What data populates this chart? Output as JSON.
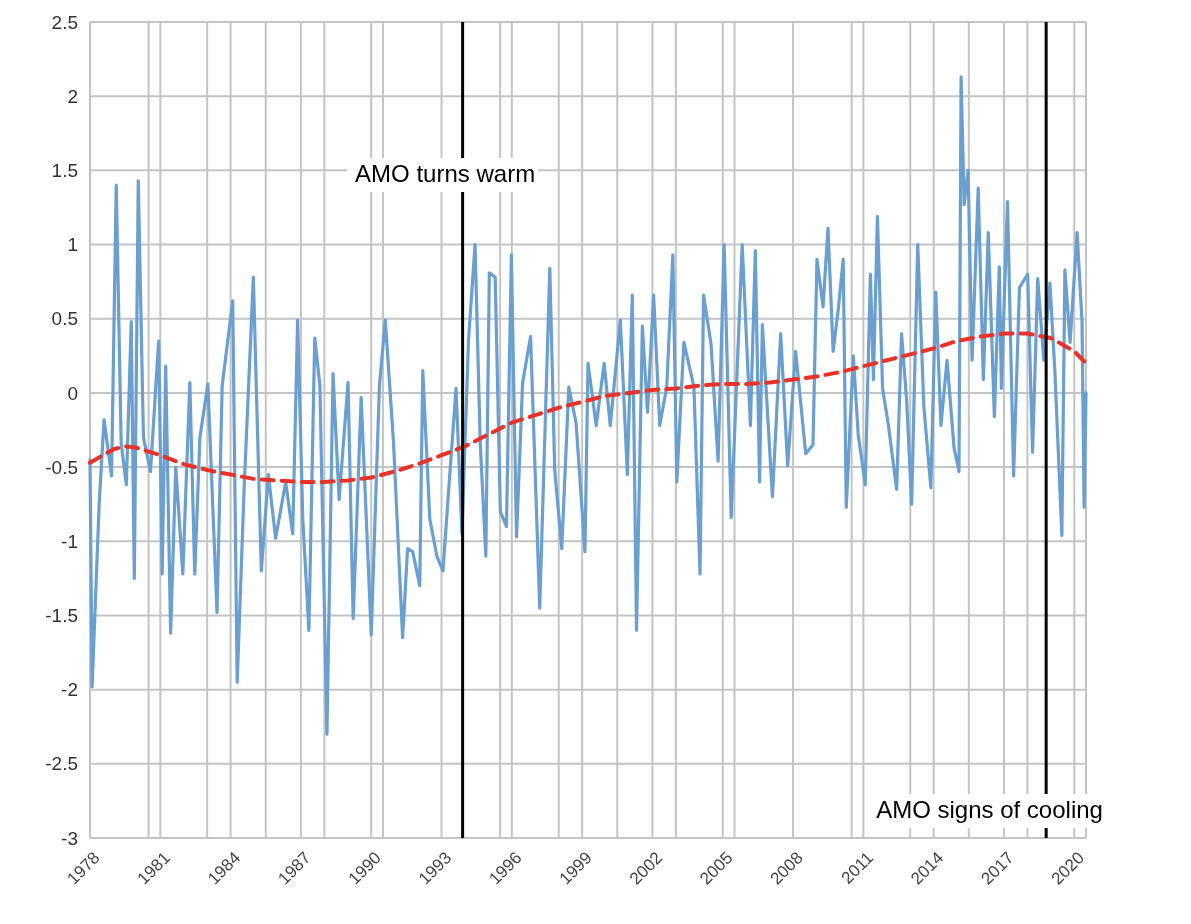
{
  "chart_data": {
    "type": "line",
    "xlim": [
      1978,
      2020.5
    ],
    "ylim": [
      -3,
      2.5
    ],
    "xticks": [
      1978,
      {
        "value": 1980.5,
        "label": null
      },
      1981,
      {
        "value": 1983,
        "label": null
      },
      1984,
      {
        "value": 1985.5,
        "label": null
      },
      1987,
      {
        "value": 1988,
        "label": null
      },
      1990,
      {
        "value": 1990.5,
        "label": null
      },
      1993,
      {
        "value": 1995.5,
        "label": null
      },
      1996,
      {
        "value": 1998,
        "label": null
      },
      1999,
      {
        "value": 2000.5,
        "label": null
      },
      2002,
      {
        "value": 2003,
        "label": null
      },
      2005,
      {
        "value": 2005.5,
        "label": null
      },
      2008,
      {
        "value": 2010.5,
        "label": null
      },
      2011,
      {
        "value": 2013,
        "label": null
      },
      2014,
      {
        "value": 2015.5,
        "label": null
      },
      2017,
      {
        "value": 2018,
        "label": null
      },
      2020,
      {
        "value": 2020.5,
        "label": null
      }
    ],
    "yticks": [
      -3,
      -2.5,
      -2,
      -1.5,
      -1,
      -0.5,
      0,
      0.5,
      1,
      1.5,
      2,
      2.5
    ],
    "grid": true,
    "marker": "none",
    "series": [
      {
        "color": "#6a9fd0",
        "line_style": "solid",
        "x": [
          1978.0,
          1978.09,
          1978.39,
          1978.6,
          1978.92,
          1979.12,
          1979.33,
          1979.55,
          1979.76,
          1979.89,
          1980.06,
          1980.28,
          1980.58,
          1980.93,
          1981.08,
          1981.23,
          1981.44,
          1981.66,
          1981.96,
          1982.26,
          1982.47,
          1982.69,
          1983.03,
          1983.42,
          1983.64,
          1984.09,
          1984.28,
          1984.58,
          1984.97,
          1985.31,
          1985.61,
          1985.92,
          1986.35,
          1986.65,
          1986.86,
          1987.08,
          1987.34,
          1987.59,
          1987.81,
          1988.11,
          1988.37,
          1988.63,
          1989.01,
          1989.23,
          1989.57,
          1990.0,
          1990.35,
          1990.6,
          1990.95,
          1991.34,
          1991.55,
          1991.77,
          1992.07,
          1992.2,
          1992.5,
          1992.8,
          1993.06,
          1993.32,
          1993.62,
          1993.87,
          1994.15,
          1994.43,
          1994.65,
          1994.89,
          1995.04,
          1995.29,
          1995.51,
          1995.77,
          1995.98,
          1996.2,
          1996.46,
          1996.8,
          1997.19,
          1997.62,
          1997.83,
          1998.13,
          1998.43,
          1998.74,
          1999.12,
          1999.25,
          1999.6,
          1999.94,
          2000.2,
          2000.63,
          2000.93,
          2001.14,
          2001.32,
          2001.57,
          2001.79,
          2002.05,
          2002.31,
          2002.61,
          2002.87,
          2003.04,
          2003.34,
          2003.77,
          2004.03,
          2004.18,
          2004.5,
          2004.8,
          2005.06,
          2005.36,
          2005.83,
          2006.18,
          2006.39,
          2006.57,
          2006.69,
          2007.12,
          2007.47,
          2007.77,
          2008.11,
          2008.54,
          2008.85,
          2009.02,
          2009.28,
          2009.49,
          2009.71,
          2009.92,
          2010.14,
          2010.27,
          2010.57,
          2010.78,
          2011.08,
          2011.3,
          2011.43,
          2011.6,
          2011.82,
          2012.07,
          2012.42,
          2012.63,
          2012.85,
          2013.06,
          2013.32,
          2013.58,
          2013.88,
          2014.09,
          2014.31,
          2014.57,
          2014.87,
          2015.08,
          2015.17,
          2015.3,
          2015.47,
          2015.64,
          2015.9,
          2016.12,
          2016.33,
          2016.59,
          2016.8,
          2016.89,
          2017.15,
          2017.41,
          2017.66,
          2018.01,
          2018.22,
          2018.44,
          2018.7,
          2018.96,
          2019.17,
          2019.47,
          2019.6,
          2019.82,
          2020.12,
          2020.33,
          2020.42,
          2020.5
        ],
        "values": [
          -0.45,
          -1.98,
          -0.75,
          -0.18,
          -0.56,
          1.4,
          -0.34,
          -0.62,
          0.48,
          -1.25,
          1.43,
          -0.3,
          -0.53,
          0.35,
          -1.22,
          0.18,
          -1.62,
          -0.5,
          -1.22,
          0.07,
          -1.22,
          -0.3,
          0.06,
          -1.48,
          0.05,
          0.62,
          -1.95,
          -0.63,
          0.78,
          -1.2,
          -0.55,
          -0.98,
          -0.6,
          -0.95,
          0.49,
          -0.85,
          -1.6,
          0.37,
          0.05,
          -2.3,
          0.13,
          -0.72,
          0.07,
          -1.52,
          -0.03,
          -1.63,
          0.05,
          0.49,
          -0.33,
          -1.65,
          -1.05,
          -1.07,
          -1.3,
          0.15,
          -0.85,
          -1.1,
          -1.2,
          -0.62,
          0.03,
          -0.95,
          0.35,
          1.0,
          -0.33,
          -1.1,
          0.81,
          0.78,
          -0.8,
          -0.9,
          0.93,
          -0.97,
          0.07,
          0.38,
          -1.45,
          0.84,
          -0.52,
          -1.05,
          0.04,
          -0.2,
          -1.07,
          0.2,
          -0.22,
          0.2,
          -0.22,
          0.49,
          -0.55,
          0.66,
          -1.6,
          0.45,
          -0.13,
          0.66,
          -0.22,
          0.04,
          0.93,
          -0.6,
          0.34,
          0.04,
          -1.22,
          0.66,
          0.33,
          -0.46,
          1.0,
          -0.84,
          1.0,
          -0.22,
          0.96,
          -0.6,
          0.46,
          -0.7,
          0.4,
          -0.49,
          0.28,
          -0.41,
          -0.35,
          0.9,
          0.58,
          1.11,
          0.28,
          0.55,
          0.9,
          -0.77,
          0.25,
          -0.28,
          -0.62,
          0.8,
          0.09,
          1.19,
          0.03,
          -0.22,
          -0.65,
          0.4,
          -0.06,
          -0.75,
          1.0,
          -0.09,
          -0.64,
          0.68,
          -0.22,
          0.22,
          -0.37,
          -0.53,
          2.13,
          1.27,
          1.5,
          0.22,
          1.38,
          0.09,
          1.08,
          -0.16,
          0.85,
          0.03,
          1.29,
          -0.56,
          0.71,
          0.8,
          -0.4,
          0.77,
          0.22,
          0.74,
          0.15,
          -0.96,
          0.83,
          0.34,
          1.08,
          0.48,
          -0.77,
          0.0
        ]
      },
      {
        "color": "#e8322a",
        "line_style": "dashed",
        "x": [
          1978,
          1979,
          1979.5,
          1980,
          1981,
          1982,
          1983,
          1984,
          1985,
          1986,
          1987,
          1988,
          1989,
          1990,
          1991,
          1992,
          1993,
          1994,
          1995,
          1996,
          1997,
          1998,
          1999,
          2000,
          2001,
          2002,
          2003,
          2004,
          2005,
          2006,
          2007,
          2008,
          2009,
          2010,
          2011,
          2012,
          2013,
          2014,
          2015,
          2016,
          2017,
          2018,
          2019,
          2020,
          2020.5
        ],
        "values": [
          -0.47,
          -0.38,
          -0.36,
          -0.37,
          -0.42,
          -0.48,
          -0.52,
          -0.55,
          -0.58,
          -0.59,
          -0.6,
          -0.6,
          -0.59,
          -0.57,
          -0.53,
          -0.48,
          -0.42,
          -0.36,
          -0.28,
          -0.2,
          -0.15,
          -0.1,
          -0.06,
          -0.02,
          0.0,
          0.02,
          0.03,
          0.05,
          0.06,
          0.06,
          0.07,
          0.09,
          0.11,
          0.14,
          0.18,
          0.22,
          0.26,
          0.3,
          0.35,
          0.38,
          0.4,
          0.4,
          0.37,
          0.28,
          0.2
        ]
      }
    ],
    "ref_lines": [
      {
        "axis": "x",
        "value": 1993.9,
        "label": "AMO turns warm",
        "color": "#000000"
      },
      {
        "axis": "x",
        "value": 2018.8,
        "label": "AMO signs of cooling",
        "color": "#000000"
      }
    ]
  }
}
